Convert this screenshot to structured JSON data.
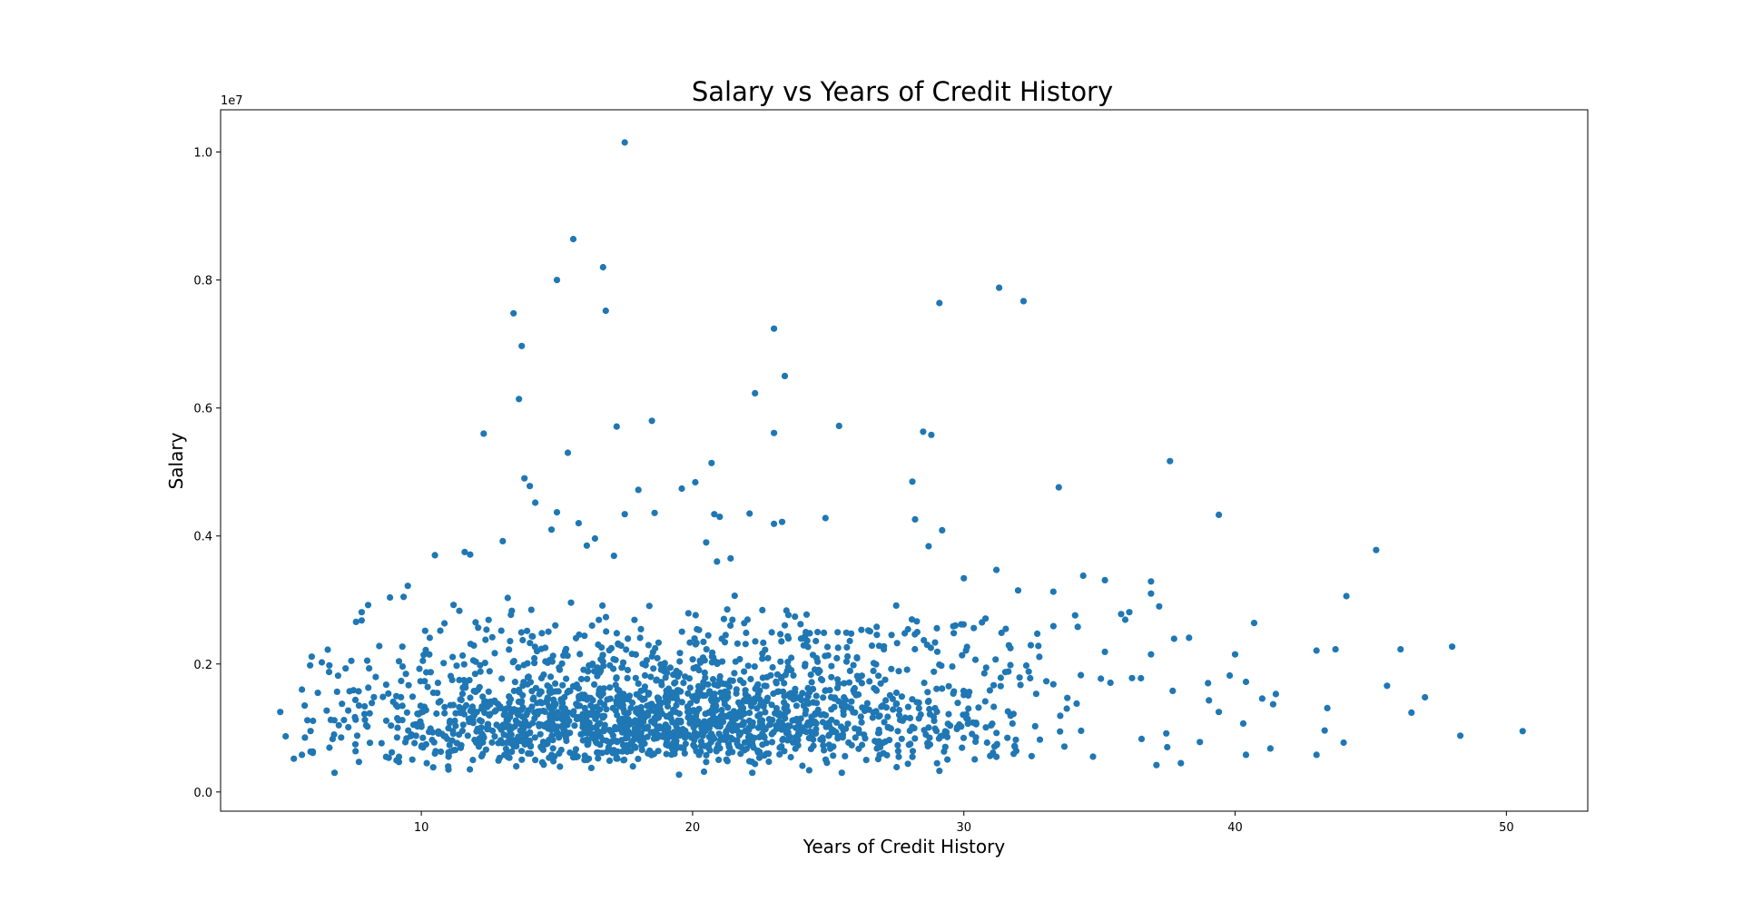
{
  "chart_data": {
    "type": "scatter",
    "title": "Salary vs Years of Credit History",
    "xlabel": "Years of Credit History",
    "ylabel": "Salary",
    "y_offset_label": "1e7",
    "xlim": [
      2.6,
      53.0
    ],
    "ylim": [
      -0.03,
      1.066
    ],
    "y_scale_factor": 10000000,
    "x_ticks": [
      10,
      20,
      30,
      40,
      50
    ],
    "x_tick_labels": [
      "10",
      "20",
      "30",
      "40",
      "50"
    ],
    "y_ticks": [
      0.0,
      0.2,
      0.4,
      0.6,
      0.8,
      1.0
    ],
    "y_tick_labels": [
      "0.0",
      "0.2",
      "0.4",
      "0.6",
      "0.8",
      "1.0"
    ],
    "grid": false,
    "marker_color": "#1f77b4",
    "points": [
      [
        17.5,
        1.015
      ],
      [
        15.6,
        0.864
      ],
      [
        16.7,
        0.82
      ],
      [
        15.0,
        0.8
      ],
      [
        16.8,
        0.752
      ],
      [
        13.4,
        0.748
      ],
      [
        13.7,
        0.697
      ],
      [
        13.6,
        0.614
      ],
      [
        12.3,
        0.56
      ],
      [
        17.2,
        0.571
      ],
      [
        18.5,
        0.58
      ],
      [
        15.4,
        0.53
      ],
      [
        23.0,
        0.724
      ],
      [
        23.4,
        0.65
      ],
      [
        22.3,
        0.623
      ],
      [
        23.0,
        0.561
      ],
      [
        25.4,
        0.572
      ],
      [
        29.1,
        0.764
      ],
      [
        31.3,
        0.788
      ],
      [
        32.2,
        0.767
      ],
      [
        28.5,
        0.563
      ],
      [
        28.8,
        0.558
      ],
      [
        20.7,
        0.514
      ],
      [
        20.1,
        0.484
      ],
      [
        19.6,
        0.474
      ],
      [
        18.0,
        0.472
      ],
      [
        13.8,
        0.49
      ],
      [
        14.0,
        0.478
      ],
      [
        14.2,
        0.452
      ],
      [
        15.0,
        0.437
      ],
      [
        17.5,
        0.434
      ],
      [
        18.6,
        0.436
      ],
      [
        20.8,
        0.434
      ],
      [
        21.0,
        0.43
      ],
      [
        22.1,
        0.435
      ],
      [
        23.3,
        0.422
      ],
      [
        23.0,
        0.419
      ],
      [
        24.9,
        0.428
      ],
      [
        28.1,
        0.485
      ],
      [
        28.2,
        0.426
      ],
      [
        29.2,
        0.409
      ],
      [
        28.7,
        0.384
      ],
      [
        33.5,
        0.476
      ],
      [
        37.6,
        0.517
      ],
      [
        39.4,
        0.433
      ],
      [
        45.2,
        0.378
      ],
      [
        44.1,
        0.306
      ],
      [
        48.0,
        0.227
      ],
      [
        46.1,
        0.223
      ],
      [
        43.7,
        0.223
      ],
      [
        43.0,
        0.221
      ],
      [
        45.6,
        0.166
      ],
      [
        47.0,
        0.148
      ],
      [
        46.5,
        0.124
      ],
      [
        48.3,
        0.088
      ],
      [
        50.6,
        0.095
      ],
      [
        43.4,
        0.131
      ],
      [
        43.3,
        0.096
      ],
      [
        44.0,
        0.077
      ],
      [
        43.0,
        0.058
      ],
      [
        41.5,
        0.153
      ],
      [
        41.0,
        0.146
      ],
      [
        41.4,
        0.137
      ],
      [
        41.3,
        0.068
      ],
      [
        40.4,
        0.058
      ],
      [
        40.7,
        0.264
      ],
      [
        40.0,
        0.215
      ],
      [
        39.8,
        0.182
      ],
      [
        40.4,
        0.172
      ],
      [
        40.3,
        0.107
      ],
      [
        39.4,
        0.125
      ],
      [
        39.0,
        0.17
      ],
      [
        38.7,
        0.078
      ],
      [
        38.0,
        0.045
      ],
      [
        38.3,
        0.241
      ],
      [
        37.2,
        0.29
      ],
      [
        36.9,
        0.31
      ],
      [
        36.9,
        0.329
      ],
      [
        36.9,
        0.215
      ],
      [
        37.7,
        0.158
      ],
      [
        37.1,
        0.042
      ],
      [
        37.5,
        0.07
      ],
      [
        34.4,
        0.338
      ],
      [
        35.2,
        0.331
      ],
      [
        35.8,
        0.278
      ],
      [
        36.1,
        0.281
      ],
      [
        35.2,
        0.219
      ],
      [
        36.2,
        0.178
      ],
      [
        34.2,
        0.258
      ],
      [
        34.1,
        0.276
      ],
      [
        33.3,
        0.313
      ],
      [
        32.0,
        0.315
      ],
      [
        31.2,
        0.347
      ],
      [
        30.8,
        0.271
      ],
      [
        30.0,
        0.334
      ],
      [
        29.9,
        0.262
      ],
      [
        10.5,
        0.37
      ],
      [
        11.6,
        0.375
      ],
      [
        11.8,
        0.371
      ],
      [
        13.0,
        0.392
      ],
      [
        9.5,
        0.322
      ],
      [
        7.8,
        0.281
      ],
      [
        7.8,
        0.268
      ],
      [
        5.6,
        0.16
      ],
      [
        5.7,
        0.135
      ],
      [
        5.0,
        0.087
      ],
      [
        4.8,
        0.125
      ],
      [
        7.5,
        0.159
      ],
      [
        5.8,
        0.112
      ],
      [
        5.3,
        0.052
      ],
      [
        5.6,
        0.058
      ],
      [
        6.0,
        0.063
      ],
      [
        6.8,
        0.03
      ],
      [
        7.7,
        0.047
      ],
      [
        9.3,
        0.227
      ],
      [
        10.7,
        0.252
      ],
      [
        11.4,
        0.283
      ],
      [
        12.0,
        0.265
      ],
      [
        16.4,
        0.396
      ],
      [
        16.1,
        0.385
      ],
      [
        17.1,
        0.369
      ],
      [
        15.8,
        0.42
      ],
      [
        14.8,
        0.41
      ],
      [
        20.5,
        0.39
      ],
      [
        20.9,
        0.36
      ],
      [
        21.4,
        0.365
      ],
      [
        14.2,
        0.05
      ],
      [
        19.5,
        0.027
      ],
      [
        22.2,
        0.03
      ],
      [
        24.3,
        0.034
      ],
      [
        25.5,
        0.03
      ],
      [
        29.1,
        0.033
      ],
      [
        10.2,
        0.045
      ],
      [
        11.0,
        0.035
      ],
      [
        11.9,
        0.05
      ],
      [
        13.5,
        0.04
      ],
      [
        17.8,
        0.04
      ],
      [
        26.4,
        0.05
      ],
      [
        27.6,
        0.055
      ],
      [
        30.4,
        0.051
      ],
      [
        31.2,
        0.055
      ],
      [
        32.5,
        0.056
      ]
    ]
  },
  "cluster_note": null
}
